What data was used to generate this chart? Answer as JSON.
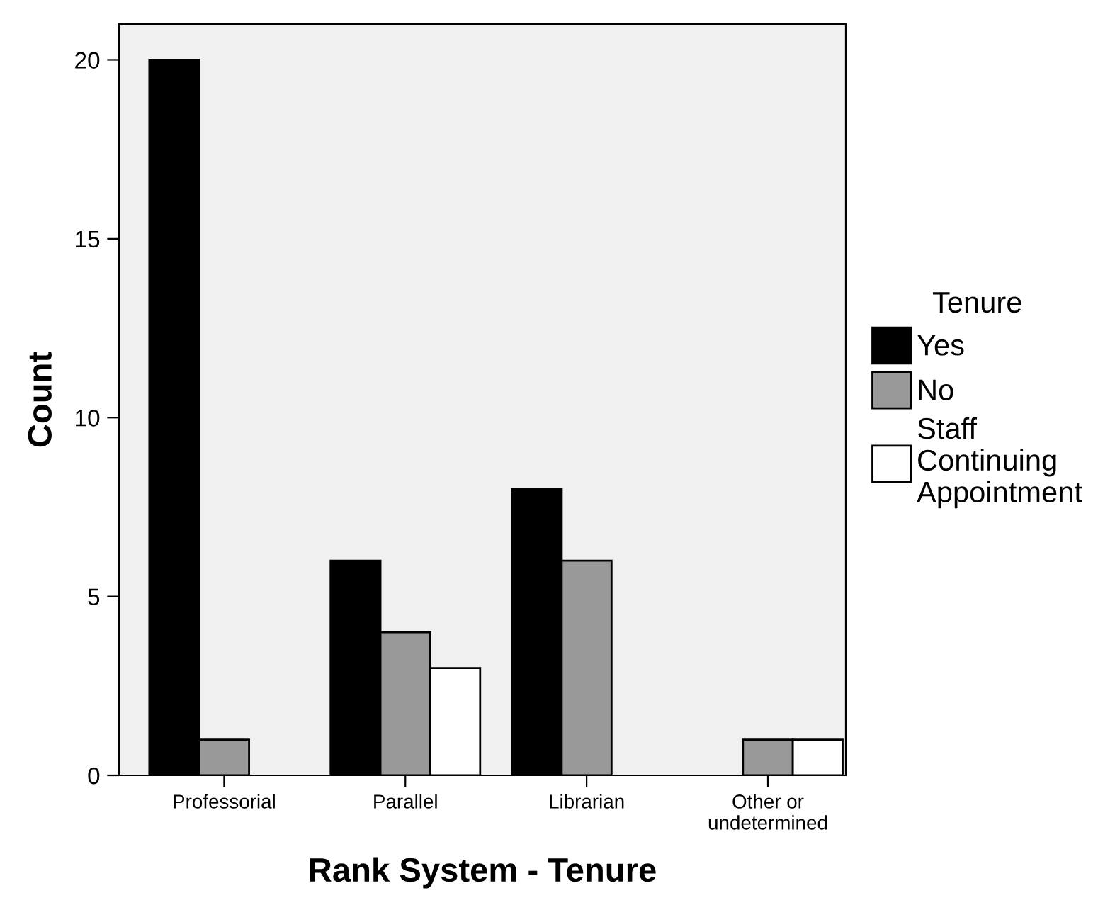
{
  "chart_data": {
    "type": "bar",
    "xlabel": "Rank System - Tenure",
    "ylabel": "Count",
    "legend_title": "Tenure",
    "categories": [
      "Professorial",
      "Parallel",
      "Librarian",
      "Other or\nundetermined"
    ],
    "series": [
      {
        "name": "Yes",
        "color": "#000000",
        "values": [
          20,
          6,
          8,
          null
        ]
      },
      {
        "name": "No",
        "color": "#999999",
        "values": [
          1,
          4,
          6,
          1
        ]
      },
      {
        "name": "Staff\nContinuing\nAppointment",
        "color": "#ffffff",
        "values": [
          null,
          3,
          null,
          1
        ]
      }
    ],
    "ylim": [
      0,
      21
    ],
    "yticks": [
      0,
      5,
      10,
      15,
      20
    ],
    "grid": false,
    "legend": "right"
  }
}
